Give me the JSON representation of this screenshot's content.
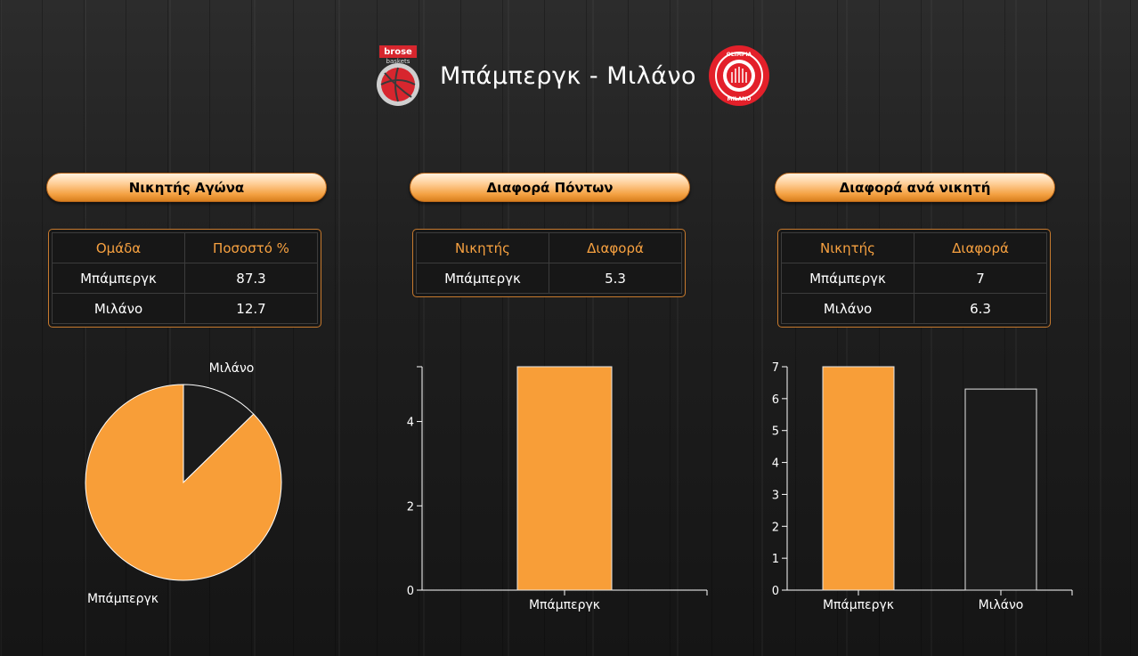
{
  "header": {
    "title": "Μπάμπεργκ - Μιλάνο",
    "home_logo_text": "brose baskets",
    "away_logo_text": "OLIMPIA MILANO"
  },
  "panels": [
    {
      "title": "Νικητής Αγώνα",
      "table": {
        "headers": [
          "Ομάδα",
          "Ποσοστό %"
        ],
        "rows": [
          [
            "Μπάμπεργκ",
            "87.3"
          ],
          [
            "Μιλάνο",
            "12.7"
          ]
        ]
      }
    },
    {
      "title": "Διαφορά Πόντων",
      "table": {
        "headers": [
          "Νικητής",
          "Διαφορά"
        ],
        "rows": [
          [
            "Μπάμπεργκ",
            "5.3"
          ]
        ]
      }
    },
    {
      "title": "Διαφορά ανά νικητή",
      "table": {
        "headers": [
          "Νικητής",
          "Διαφορά"
        ],
        "rows": [
          [
            "Μπάμπεργκ",
            "7"
          ],
          [
            "Μιλάνο",
            "6.3"
          ]
        ]
      }
    }
  ],
  "colors": {
    "accent": "#f89e38",
    "dark": "#1b1b1b",
    "header_text": "#f7a140"
  },
  "chart_data": [
    {
      "type": "pie",
      "categories": [
        "Μπάμπεργκ",
        "Μιλάνο"
      ],
      "values": [
        87.3,
        12.7
      ],
      "colors": [
        "#f89e38",
        "#1b1b1b"
      ]
    },
    {
      "type": "bar",
      "categories": [
        "Μπάμπεργκ"
      ],
      "values": [
        5.3
      ],
      "ylim": [
        0,
        5.3
      ],
      "yticks": [
        0,
        2,
        4
      ],
      "colors": [
        "#f89e38"
      ]
    },
    {
      "type": "bar",
      "categories": [
        "Μπάμπεργκ",
        "Μιλάνο"
      ],
      "values": [
        7,
        6.3
      ],
      "ylim": [
        0,
        7
      ],
      "yticks": [
        0,
        1,
        2,
        3,
        4,
        5,
        6,
        7
      ],
      "colors": [
        "#f89e38",
        "#1b1b1b"
      ]
    }
  ]
}
